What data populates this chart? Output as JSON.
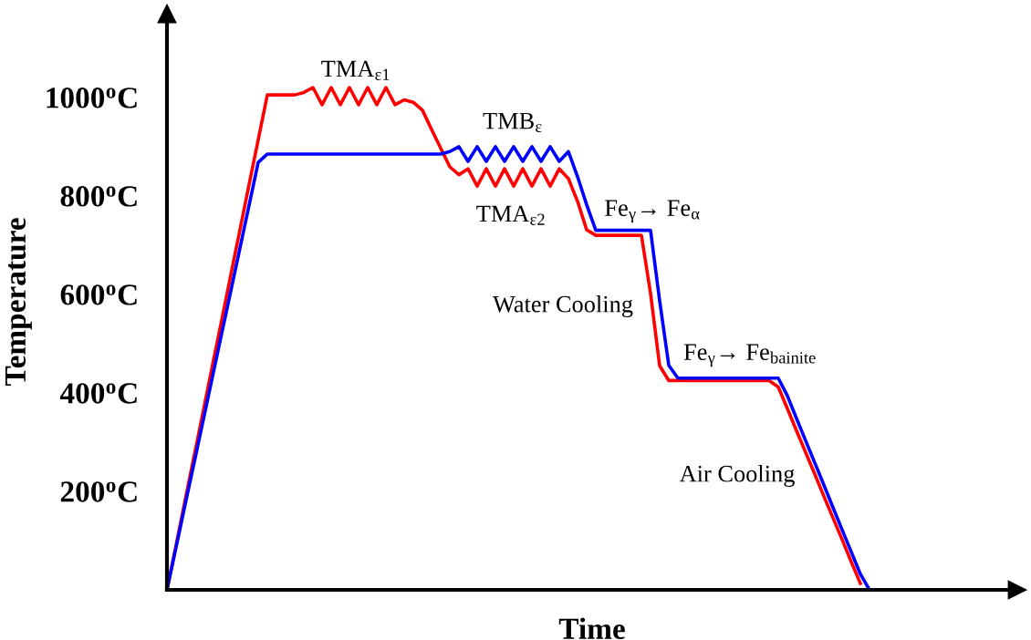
{
  "chart_data": {
    "type": "line",
    "xlabel": "Time",
    "ylabel": "Temperature",
    "tick_labels": "y",
    "categories": [
      null,
      null,
      null,
      null,
      null,
      null,
      null,
      null,
      null,
      null,
      null,
      null,
      null,
      null,
      null,
      null,
      null,
      null,
      null,
      null,
      null,
      null,
      null,
      null,
      null,
      null,
      null,
      null,
      null,
      null,
      null,
      null,
      null,
      null,
      null,
      null,
      null,
      null,
      null,
      null,
      null,
      null,
      null,
      null,
      null,
      null,
      null,
      null,
      null,
      null,
      null,
      null,
      null,
      null,
      null,
      null,
      null,
      null,
      null,
      null,
      null,
      null,
      null,
      null,
      null,
      null,
      null,
      null,
      null,
      null,
      null,
      null,
      null,
      null,
      null,
      null,
      null,
      null
    ],
    "ylim": [
      0,
      1170
    ],
    "yticks": [
      {
        "value": 200,
        "label": "200$^{o}$C"
      },
      {
        "value": 400,
        "label": "400$^{o}$C"
      },
      {
        "value": 600,
        "label": "600$^{o}$C"
      },
      {
        "value": 800,
        "label": "800$^{o}$C"
      },
      {
        "value": 1000,
        "label": "1000$^{o}$C"
      }
    ],
    "series": [
      {
        "color": "#ff0000",
        "values": [
          0,
          91,
          183,
          274,
          365,
          457,
          548,
          640,
          731,
          823,
          914,
          1005,
          1005,
          1005,
          1005,
          1010,
          1020,
          985,
          1020,
          985,
          1020,
          985,
          1020,
          985,
          1020,
          985,
          995,
          990,
          974,
          935,
          897,
          859,
          843,
          855,
          820,
          855,
          820,
          855,
          820,
          855,
          820,
          855,
          820,
          855,
          835,
          789,
          731,
          720,
          720,
          720,
          720,
          720,
          720,
          602,
          455,
          425,
          425,
          425,
          425,
          425,
          425,
          425,
          425,
          425,
          425,
          425,
          425,
          412,
          368,
          323,
          279,
          235,
          190,
          146,
          102,
          57,
          13,
          null
        ]
      },
      {
        "color": "#0000ff",
        "values": [
          0,
          87,
          174,
          260,
          347,
          434,
          521,
          607,
          694,
          781,
          868,
          885,
          885,
          885,
          885,
          885,
          885,
          885,
          885,
          885,
          885,
          885,
          885,
          885,
          885,
          885,
          885,
          885,
          885,
          885,
          885,
          890,
          900,
          870,
          900,
          870,
          900,
          870,
          900,
          870,
          900,
          870,
          900,
          870,
          890,
          839,
          782,
          730,
          730,
          730,
          730,
          730,
          730,
          730,
          587,
          456,
          430,
          430,
          430,
          430,
          430,
          430,
          430,
          430,
          430,
          430,
          430,
          430,
          394,
          348,
          303,
          258,
          213,
          167,
          122,
          77,
          32,
          0
        ]
      }
    ],
    "annotations": [
      "TMA$_{ε1}$",
      "TMB$_{ε}$",
      "TMA$_{ε2}$",
      "Fe$_{γ}$→ Fe$_{α}$",
      "Water Cooling",
      "Fe$_{γ}$→ Fe$_{bainite}$",
      "Air Cooling"
    ]
  }
}
